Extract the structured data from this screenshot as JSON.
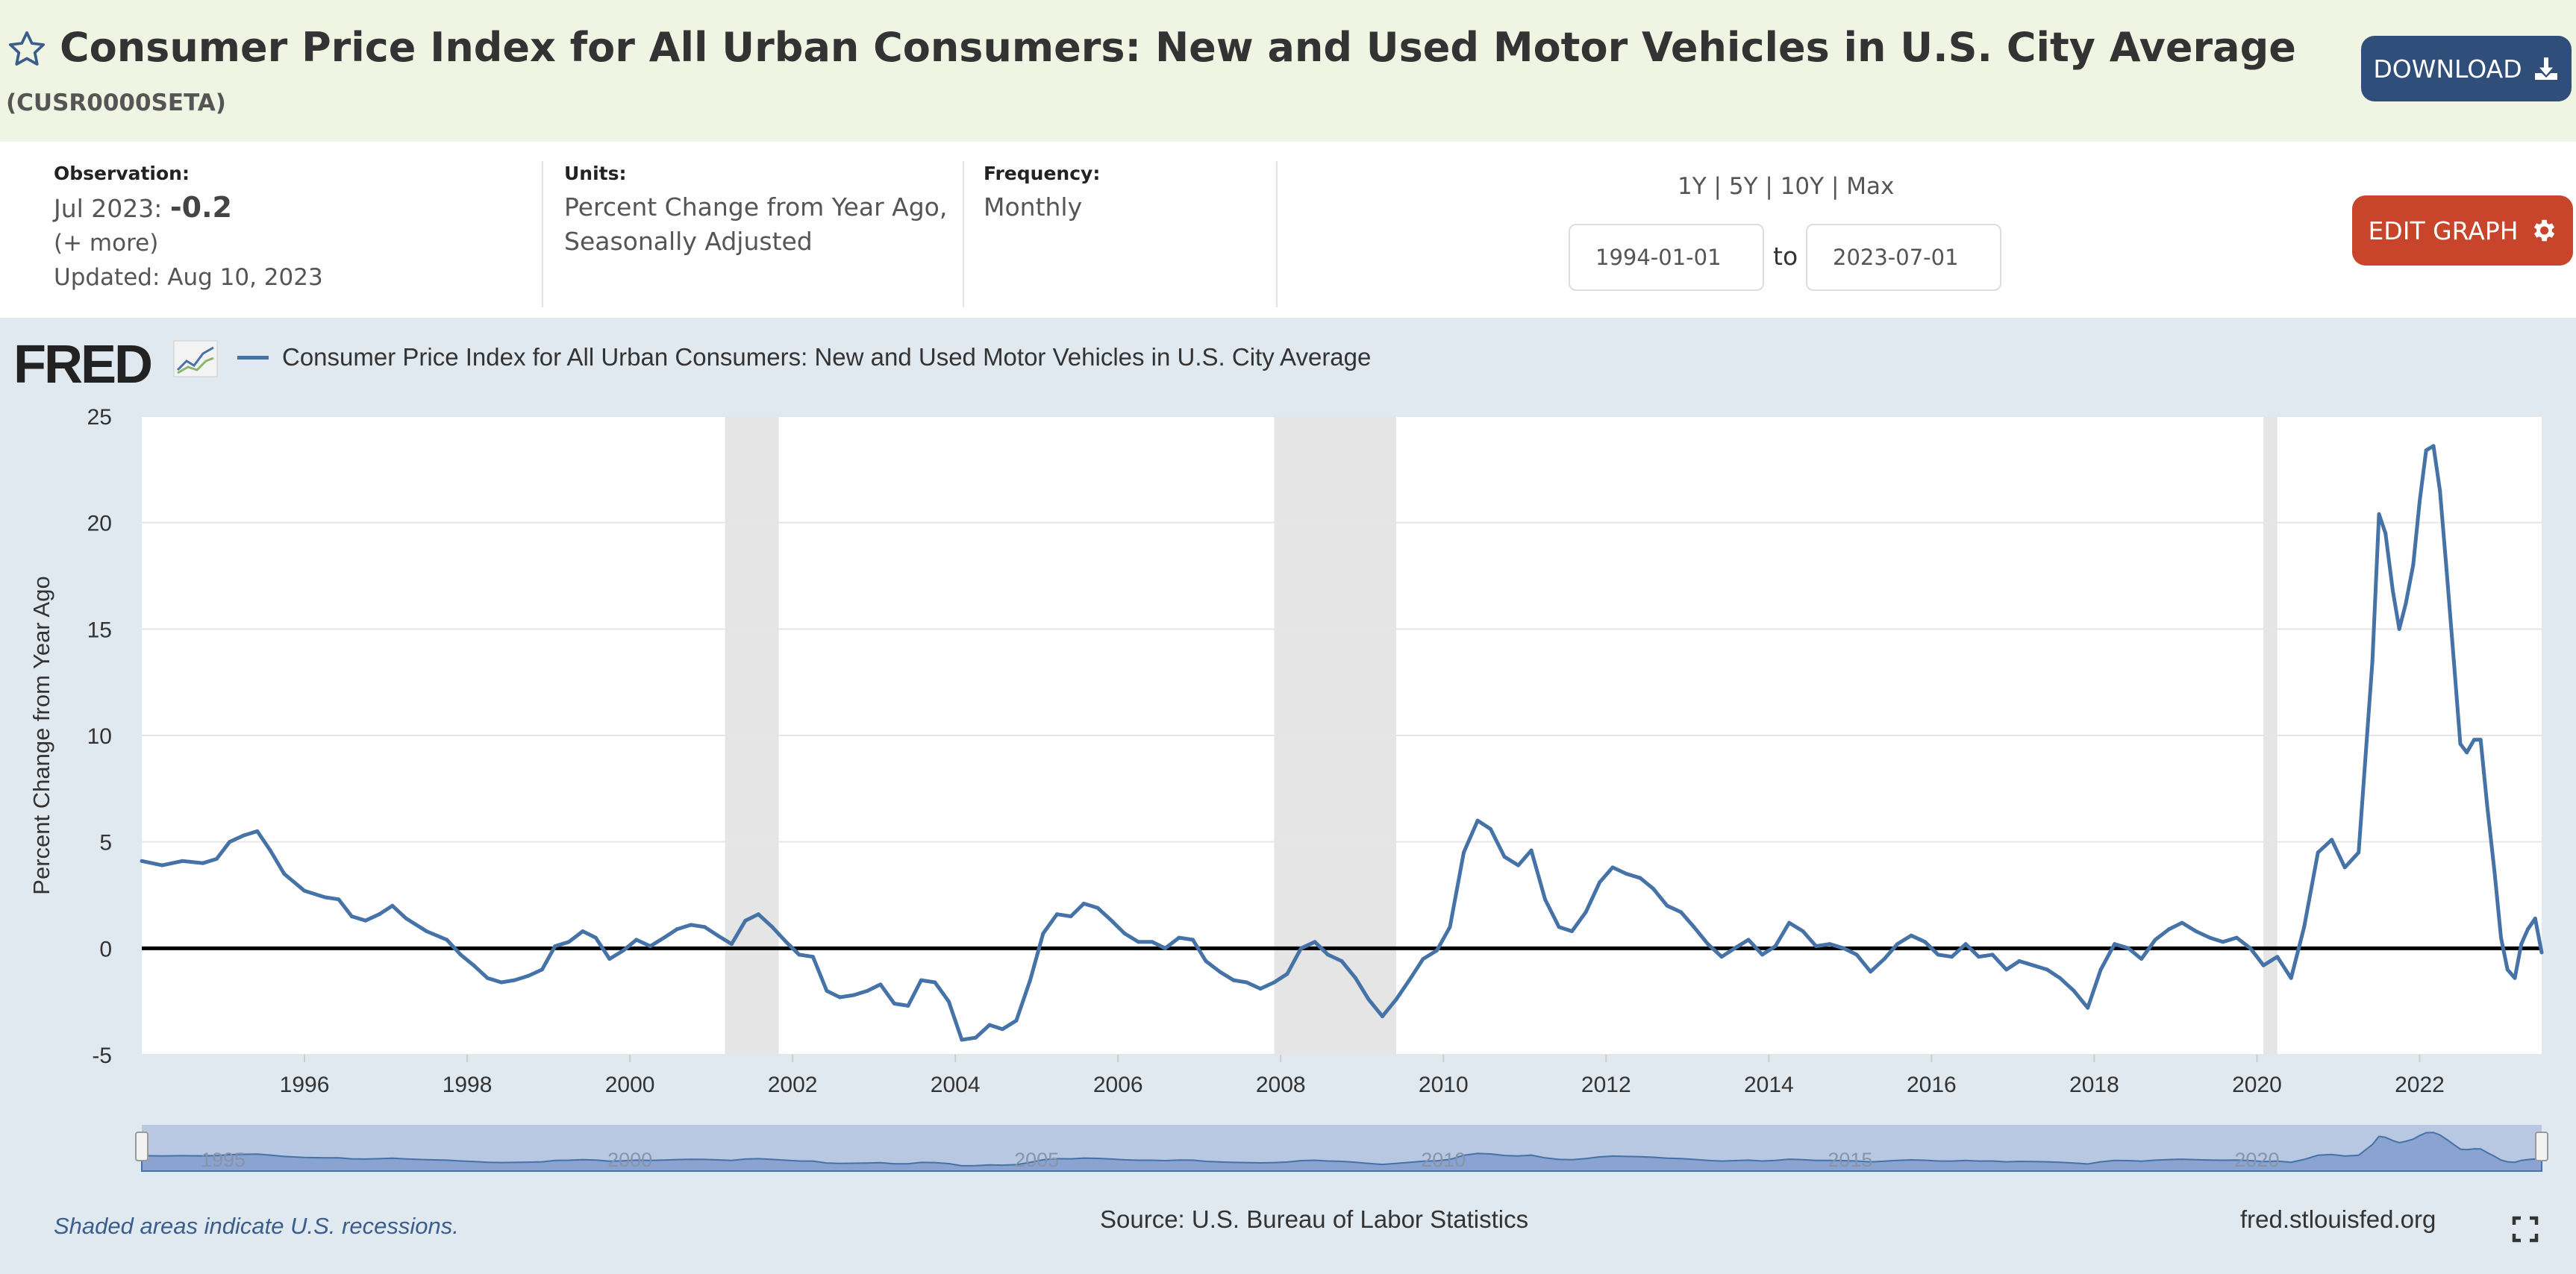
{
  "header": {
    "title": "Consumer Price Index for All Urban Consumers: New and Used Motor Vehicles in U.S. City Average",
    "series_id": "(CUSR0000SETA)",
    "download_label": "DOWNLOAD",
    "icons": {
      "favorite": "star-icon",
      "download": "download-icon"
    }
  },
  "info": {
    "observation_label": "Observation:",
    "observation_date": "Jul 2023:",
    "observation_value": "-0.2",
    "more": "(+ more)",
    "updated": "Updated: Aug 10, 2023",
    "units_label": "Units:",
    "units_line1": "Percent Change from Year Ago,",
    "units_line2": "Seasonally Adjusted",
    "frequency_label": "Frequency:",
    "frequency_value": "Monthly",
    "range_links": [
      "1Y",
      "5Y",
      "10Y",
      "Max"
    ],
    "separator": "|",
    "date_from": "1994-01-01",
    "to_label": "to",
    "date_to": "2023-07-01",
    "edit_label": "EDIT GRAPH"
  },
  "chart_panel": {
    "logo": "FRED",
    "legend_label": "Consumer Price Index for All Urban Consumers: New and Used Motor Vehicles in U.S. City Average",
    "shaded_note": "Shaded areas indicate U.S. recessions.",
    "source": "Source: U.S. Bureau of Labor Statistics",
    "site": "fred.stlouisfed.org",
    "navigator_labels": [
      "1995",
      "2000",
      "2005",
      "2010",
      "2015",
      "2020"
    ]
  },
  "colors": {
    "series": "#4572a7",
    "edit_button": "#c8442b",
    "download_button": "#2f4f7a",
    "recession_shade": "#e5e5e5"
  },
  "chart_data": {
    "type": "line",
    "title": "",
    "xlabel": "",
    "ylabel": "Percent Change from Year Ago",
    "xlim": [
      1994.0,
      2023.5
    ],
    "ylim": [
      -5,
      25
    ],
    "yticks": [
      -5,
      0,
      5,
      10,
      15,
      20,
      25
    ],
    "xticks": [
      1996,
      1998,
      2000,
      2002,
      2004,
      2006,
      2008,
      2010,
      2012,
      2014,
      2016,
      2018,
      2020,
      2022
    ],
    "grid": true,
    "zero_line": true,
    "legend": "top-left",
    "recessions": [
      [
        2001.17,
        2001.83
      ],
      [
        2007.92,
        2009.42
      ],
      [
        2020.08,
        2020.25
      ]
    ],
    "series": [
      {
        "name": "Consumer Price Index for All Urban Consumers: New and Used Motor Vehicles in U.S. City Average",
        "points": [
          [
            1994.0,
            4.1
          ],
          [
            1994.25,
            3.9
          ],
          [
            1994.5,
            4.1
          ],
          [
            1994.75,
            4.0
          ],
          [
            1994.92,
            4.2
          ],
          [
            1995.08,
            5.0
          ],
          [
            1995.25,
            5.3
          ],
          [
            1995.42,
            5.5
          ],
          [
            1995.58,
            4.6
          ],
          [
            1995.75,
            3.5
          ],
          [
            1996.0,
            2.7
          ],
          [
            1996.25,
            2.4
          ],
          [
            1996.42,
            2.3
          ],
          [
            1996.58,
            1.5
          ],
          [
            1996.75,
            1.3
          ],
          [
            1996.92,
            1.6
          ],
          [
            1997.08,
            2.0
          ],
          [
            1997.25,
            1.4
          ],
          [
            1997.5,
            0.8
          ],
          [
            1997.75,
            0.4
          ],
          [
            1997.92,
            -0.3
          ],
          [
            1998.08,
            -0.8
          ],
          [
            1998.25,
            -1.4
          ],
          [
            1998.42,
            -1.6
          ],
          [
            1998.58,
            -1.5
          ],
          [
            1998.75,
            -1.3
          ],
          [
            1998.92,
            -1.0
          ],
          [
            1999.08,
            0.1
          ],
          [
            1999.25,
            0.3
          ],
          [
            1999.42,
            0.8
          ],
          [
            1999.58,
            0.5
          ],
          [
            1999.75,
            -0.5
          ],
          [
            1999.92,
            -0.1
          ],
          [
            2000.08,
            0.4
          ],
          [
            2000.25,
            0.1
          ],
          [
            2000.42,
            0.5
          ],
          [
            2000.58,
            0.9
          ],
          [
            2000.75,
            1.1
          ],
          [
            2000.92,
            1.0
          ],
          [
            2001.08,
            0.6
          ],
          [
            2001.25,
            0.2
          ],
          [
            2001.42,
            1.3
          ],
          [
            2001.58,
            1.6
          ],
          [
            2001.75,
            1.0
          ],
          [
            2001.92,
            0.3
          ],
          [
            2002.08,
            -0.3
          ],
          [
            2002.25,
            -0.4
          ],
          [
            2002.42,
            -2.0
          ],
          [
            2002.58,
            -2.3
          ],
          [
            2002.75,
            -2.2
          ],
          [
            2002.92,
            -2.0
          ],
          [
            2003.08,
            -1.7
          ],
          [
            2003.25,
            -2.6
          ],
          [
            2003.42,
            -2.7
          ],
          [
            2003.58,
            -1.5
          ],
          [
            2003.75,
            -1.6
          ],
          [
            2003.92,
            -2.5
          ],
          [
            2004.08,
            -4.3
          ],
          [
            2004.25,
            -4.2
          ],
          [
            2004.42,
            -3.6
          ],
          [
            2004.58,
            -3.8
          ],
          [
            2004.75,
            -3.4
          ],
          [
            2004.92,
            -1.5
          ],
          [
            2005.08,
            0.7
          ],
          [
            2005.25,
            1.6
          ],
          [
            2005.42,
            1.5
          ],
          [
            2005.58,
            2.1
          ],
          [
            2005.75,
            1.9
          ],
          [
            2005.92,
            1.3
          ],
          [
            2006.08,
            0.7
          ],
          [
            2006.25,
            0.3
          ],
          [
            2006.42,
            0.3
          ],
          [
            2006.58,
            0.0
          ],
          [
            2006.75,
            0.5
          ],
          [
            2006.92,
            0.4
          ],
          [
            2007.08,
            -0.6
          ],
          [
            2007.25,
            -1.1
          ],
          [
            2007.42,
            -1.5
          ],
          [
            2007.58,
            -1.6
          ],
          [
            2007.75,
            -1.9
          ],
          [
            2007.92,
            -1.6
          ],
          [
            2008.08,
            -1.2
          ],
          [
            2008.25,
            0.0
          ],
          [
            2008.42,
            0.3
          ],
          [
            2008.58,
            -0.3
          ],
          [
            2008.75,
            -0.6
          ],
          [
            2008.92,
            -1.4
          ],
          [
            2009.08,
            -2.4
          ],
          [
            2009.25,
            -3.2
          ],
          [
            2009.42,
            -2.4
          ],
          [
            2009.58,
            -1.5
          ],
          [
            2009.75,
            -0.5
          ],
          [
            2009.92,
            -0.1
          ],
          [
            2010.08,
            1.0
          ],
          [
            2010.25,
            4.5
          ],
          [
            2010.42,
            6.0
          ],
          [
            2010.58,
            5.6
          ],
          [
            2010.75,
            4.3
          ],
          [
            2010.92,
            3.9
          ],
          [
            2011.08,
            4.6
          ],
          [
            2011.25,
            2.3
          ],
          [
            2011.42,
            1.0
          ],
          [
            2011.58,
            0.8
          ],
          [
            2011.75,
            1.7
          ],
          [
            2011.92,
            3.1
          ],
          [
            2012.08,
            3.8
          ],
          [
            2012.25,
            3.5
          ],
          [
            2012.42,
            3.3
          ],
          [
            2012.58,
            2.8
          ],
          [
            2012.75,
            2.0
          ],
          [
            2012.92,
            1.7
          ],
          [
            2013.08,
            1.0
          ],
          [
            2013.25,
            0.2
          ],
          [
            2013.42,
            -0.4
          ],
          [
            2013.58,
            0.0
          ],
          [
            2013.75,
            0.4
          ],
          [
            2013.92,
            -0.3
          ],
          [
            2014.08,
            0.1
          ],
          [
            2014.25,
            1.2
          ],
          [
            2014.42,
            0.8
          ],
          [
            2014.58,
            0.1
          ],
          [
            2014.75,
            0.2
          ],
          [
            2014.92,
            0.0
          ],
          [
            2015.08,
            -0.3
          ],
          [
            2015.25,
            -1.1
          ],
          [
            2015.42,
            -0.5
          ],
          [
            2015.58,
            0.2
          ],
          [
            2015.75,
            0.6
          ],
          [
            2015.92,
            0.3
          ],
          [
            2016.08,
            -0.3
          ],
          [
            2016.25,
            -0.4
          ],
          [
            2016.42,
            0.2
          ],
          [
            2016.58,
            -0.4
          ],
          [
            2016.75,
            -0.3
          ],
          [
            2016.92,
            -1.0
          ],
          [
            2017.08,
            -0.6
          ],
          [
            2017.25,
            -0.8
          ],
          [
            2017.42,
            -1.0
          ],
          [
            2017.58,
            -1.4
          ],
          [
            2017.75,
            -2.0
          ],
          [
            2017.92,
            -2.8
          ],
          [
            2018.08,
            -1.0
          ],
          [
            2018.25,
            0.2
          ],
          [
            2018.42,
            0.0
          ],
          [
            2018.58,
            -0.5
          ],
          [
            2018.75,
            0.4
          ],
          [
            2018.92,
            0.9
          ],
          [
            2019.08,
            1.2
          ],
          [
            2019.25,
            0.8
          ],
          [
            2019.42,
            0.5
          ],
          [
            2019.58,
            0.3
          ],
          [
            2019.75,
            0.5
          ],
          [
            2019.92,
            0.0
          ],
          [
            2020.08,
            -0.8
          ],
          [
            2020.25,
            -0.4
          ],
          [
            2020.42,
            -1.4
          ],
          [
            2020.58,
            1.0
          ],
          [
            2020.75,
            4.5
          ],
          [
            2020.92,
            5.1
          ],
          [
            2021.08,
            3.8
          ],
          [
            2021.25,
            4.5
          ],
          [
            2021.42,
            13.5
          ],
          [
            2021.5,
            20.4
          ],
          [
            2021.58,
            19.5
          ],
          [
            2021.67,
            16.8
          ],
          [
            2021.75,
            15.0
          ],
          [
            2021.83,
            16.2
          ],
          [
            2021.92,
            18.0
          ],
          [
            2022.0,
            21.0
          ],
          [
            2022.08,
            23.4
          ],
          [
            2022.17,
            23.6
          ],
          [
            2022.25,
            21.5
          ],
          [
            2022.33,
            17.8
          ],
          [
            2022.42,
            13.5
          ],
          [
            2022.5,
            9.6
          ],
          [
            2022.58,
            9.2
          ],
          [
            2022.67,
            9.8
          ],
          [
            2022.75,
            9.8
          ],
          [
            2022.83,
            6.7
          ],
          [
            2022.92,
            3.6
          ],
          [
            2023.0,
            0.5
          ],
          [
            2023.08,
            -1.0
          ],
          [
            2023.17,
            -1.4
          ],
          [
            2023.25,
            0.2
          ],
          [
            2023.33,
            0.9
          ],
          [
            2023.42,
            1.4
          ],
          [
            2023.5,
            -0.2
          ]
        ]
      }
    ]
  }
}
